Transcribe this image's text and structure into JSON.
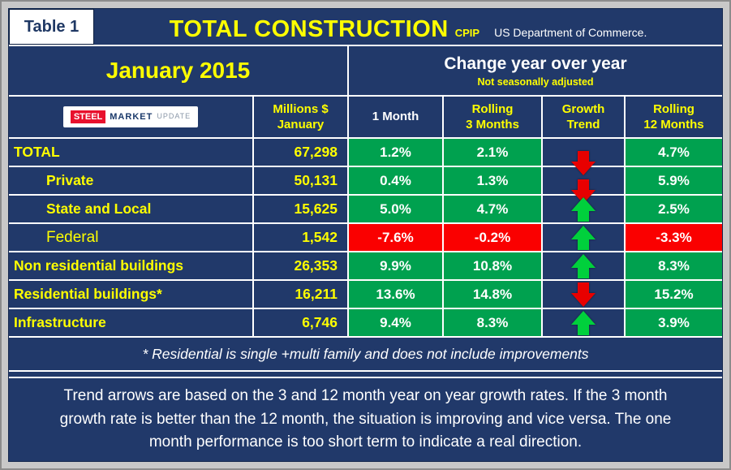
{
  "colors": {
    "navy": "#21396a",
    "green": "#00a14f",
    "red": "#fa0000",
    "yellow": "#ffff00",
    "arrow_up": "#00d03c",
    "arrow_down": "#e80000"
  },
  "header": {
    "table_label": "Table 1",
    "title": "TOTAL CONSTRUCTION",
    "cpip": "CPIP",
    "source": "US Department of Commerce."
  },
  "subheader": {
    "month": "January 2015",
    "change_title": "Change year over year",
    "change_subtitle": "Not seasonally adjusted"
  },
  "logo": {
    "steel": "STEEL",
    "market": "MARKET",
    "update": "UPDATE"
  },
  "columns": {
    "millions_l1": "Millions $",
    "millions_l2": "January",
    "one_month": "1 Month",
    "rolling3_l1": "Rolling",
    "rolling3_l2": "3 Months",
    "growth_l1": "Growth",
    "growth_l2": "Trend",
    "rolling12_l1": "Rolling",
    "rolling12_l2": "12 Months"
  },
  "rows": [
    {
      "label": "TOTAL",
      "millions": "67,298",
      "m1": "1.2%",
      "m3": "2.1%",
      "m12": "4.7%",
      "trend": "down shift"
    },
    {
      "label": "Private",
      "style": "indent",
      "millions": "50,131",
      "m1": "0.4%",
      "m3": "1.3%",
      "m12": "5.9%",
      "trend": "down shift"
    },
    {
      "label": "State and Local",
      "style": "indent",
      "millions": "15,625",
      "m1": "5.0%",
      "m3": "4.7%",
      "m12": "2.5%",
      "trend": "up"
    },
    {
      "label": "Federal",
      "style": "indent normal",
      "millions": "1,542",
      "m1": "-7.6%",
      "m3": "-0.2%",
      "m12": "-3.3%",
      "m1_state": "neg",
      "m3_state": "neg",
      "m12_state": "neg",
      "trend": "up"
    },
    {
      "label": "Non residential buildings",
      "millions": "26,353",
      "m1": "9.9%",
      "m3": "10.8%",
      "m12": "8.3%",
      "trend": "up"
    },
    {
      "label": "Residential buildings*",
      "millions": "16,211",
      "m1": "13.6%",
      "m3": "14.8%",
      "m12": "15.2%",
      "trend": "down"
    },
    {
      "label": "Infrastructure",
      "millions": "6,746",
      "m1": "9.4%",
      "m3": "8.3%",
      "m12": "3.9%",
      "trend": "up"
    }
  ],
  "footnote": "* Residential is single +multi family and does not include improvements",
  "note_lines": {
    "l1": "Trend arrows are based on the 3 and 12 month year on year growth rates. If the 3 month",
    "l2": "growth rate is better than the 12 month, the situation is improving and vice versa. The one",
    "l3": "month performance is too short term to indicate a real direction."
  },
  "chart_data": {
    "type": "table",
    "title": "TOTAL CONSTRUCTION (CPIP) - US Department of Commerce",
    "period": "January 2015",
    "note": "Not seasonally adjusted",
    "columns": [
      "Millions $ January",
      "1 Month %",
      "Rolling 3 Months %",
      "Growth Trend",
      "Rolling 12 Months %"
    ],
    "rows": [
      {
        "category": "TOTAL",
        "millions_usd": 67298,
        "one_month_pct": 1.2,
        "rolling_3m_pct": 2.1,
        "growth_trend": "down",
        "rolling_12m_pct": 4.7
      },
      {
        "category": "Private",
        "millions_usd": 50131,
        "one_month_pct": 0.4,
        "rolling_3m_pct": 1.3,
        "growth_trend": "down",
        "rolling_12m_pct": 5.9
      },
      {
        "category": "State and Local",
        "millions_usd": 15625,
        "one_month_pct": 5.0,
        "rolling_3m_pct": 4.7,
        "growth_trend": "up",
        "rolling_12m_pct": 2.5
      },
      {
        "category": "Federal",
        "millions_usd": 1542,
        "one_month_pct": -7.6,
        "rolling_3m_pct": -0.2,
        "growth_trend": "up",
        "rolling_12m_pct": -3.3
      },
      {
        "category": "Non residential buildings",
        "millions_usd": 26353,
        "one_month_pct": 9.9,
        "rolling_3m_pct": 10.8,
        "growth_trend": "up",
        "rolling_12m_pct": 8.3
      },
      {
        "category": "Residential buildings*",
        "millions_usd": 16211,
        "one_month_pct": 13.6,
        "rolling_3m_pct": 14.8,
        "growth_trend": "down",
        "rolling_12m_pct": 15.2
      },
      {
        "category": "Infrastructure",
        "millions_usd": 6746,
        "one_month_pct": 9.4,
        "rolling_3m_pct": 8.3,
        "growth_trend": "up",
        "rolling_12m_pct": 3.9
      }
    ]
  }
}
